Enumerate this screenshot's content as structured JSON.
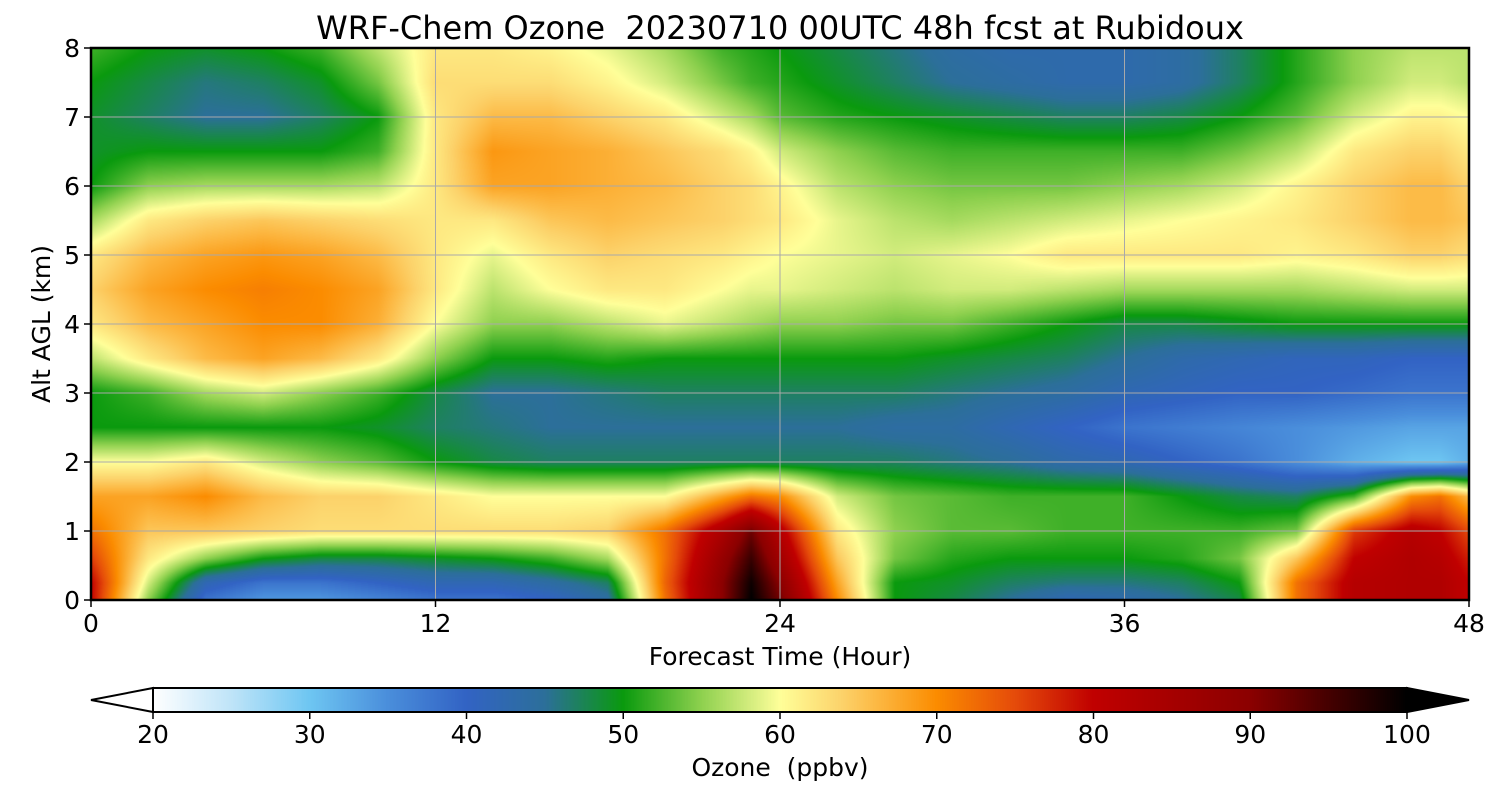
{
  "chart_data": {
    "type": "heatmap",
    "title": "WRF-Chem Ozone  20230710 00UTC 48h fcst at Rubidoux",
    "xlabel": "Forecast Time (Hour)",
    "ylabel": "Alt AGL (km)",
    "xlim": [
      0,
      48
    ],
    "ylim": [
      0,
      8
    ],
    "xticks": [
      0,
      12,
      24,
      36,
      48
    ],
    "yticks": [
      0,
      1,
      2,
      3,
      4,
      5,
      6,
      7,
      8
    ],
    "grid": true,
    "x_hours": [
      0,
      2,
      4,
      6,
      8,
      10,
      12,
      14,
      16,
      18,
      20,
      22,
      23,
      24,
      26,
      28,
      30,
      32,
      34,
      36,
      38,
      40,
      42,
      44,
      46,
      47,
      48
    ],
    "y_km": [
      0,
      0.25,
      0.6,
      1.0,
      1.5,
      2.0,
      2.5,
      3.0,
      3.5,
      4.0,
      4.5,
      5.0,
      5.5,
      6.0,
      6.5,
      7.0,
      7.5,
      8.0
    ],
    "values_ppbv": [
      [
        80,
        55,
        38,
        34,
        34,
        36,
        38,
        38,
        40,
        44,
        72,
        90,
        100,
        92,
        70,
        50,
        48,
        45,
        42,
        43,
        45,
        48,
        72,
        82,
        83,
        83,
        80
      ],
      [
        80,
        58,
        42,
        38,
        38,
        40,
        42,
        42,
        44,
        47,
        73,
        90,
        99,
        90,
        68,
        50,
        49,
        47,
        46,
        46,
        47,
        50,
        72,
        82,
        83,
        83,
        80
      ],
      [
        76,
        62,
        55,
        50,
        48,
        48,
        49,
        50,
        52,
        56,
        72,
        88,
        96,
        86,
        65,
        54,
        51,
        50,
        50,
        50,
        51,
        54,
        65,
        80,
        83,
        82,
        78
      ],
      [
        72,
        65,
        65,
        64,
        63,
        63,
        63,
        63,
        63,
        64,
        72,
        84,
        92,
        82,
        62,
        55,
        53,
        53,
        52,
        52,
        52,
        52,
        54,
        76,
        82,
        80,
        75
      ],
      [
        68,
        68,
        70,
        66,
        64,
        64,
        62,
        60,
        60,
        60,
        60,
        68,
        72,
        70,
        58,
        54,
        53,
        52,
        52,
        52,
        50,
        48,
        47,
        52,
        70,
        72,
        66
      ],
      [
        60,
        60,
        62,
        58,
        55,
        53,
        50,
        48,
        47,
        47,
        47,
        47,
        47,
        47,
        47,
        47,
        46,
        45,
        43,
        42,
        40,
        38,
        35,
        32,
        30,
        30,
        32
      ],
      [
        50,
        50,
        50,
        50,
        50,
        49,
        47,
        46,
        45,
        45,
        45,
        45,
        45,
        45,
        45,
        44,
        44,
        42,
        40,
        38,
        37,
        36,
        35,
        34,
        33,
        33,
        33
      ],
      [
        50,
        52,
        56,
        58,
        55,
        52,
        48,
        45,
        45,
        46,
        47,
        47,
        47,
        47,
        47,
        47,
        46,
        45,
        44,
        42,
        41,
        40,
        40,
        39,
        38,
        38,
        38
      ],
      [
        57,
        62,
        66,
        68,
        66,
        62,
        55,
        50,
        50,
        51,
        50,
        50,
        50,
        50,
        50,
        50,
        49,
        48,
        47,
        45,
        43,
        42,
        41,
        41,
        40,
        40,
        40
      ],
      [
        62,
        66,
        68,
        70,
        70,
        67,
        60,
        55,
        55,
        57,
        59,
        57,
        56,
        55,
        55,
        54,
        54,
        52,
        50,
        48,
        48,
        49,
        50,
        50,
        50,
        50,
        50
      ],
      [
        64,
        68,
        70,
        71,
        70,
        68,
        62,
        57,
        60,
        62,
        62,
        60,
        59,
        59,
        58,
        57,
        58,
        58,
        57,
        56,
        56,
        56,
        56,
        57,
        58,
        58,
        58
      ],
      [
        62,
        66,
        68,
        69,
        68,
        66,
        62,
        59,
        62,
        64,
        63,
        62,
        61,
        60,
        59,
        58,
        59,
        60,
        62,
        62,
        62,
        62,
        61,
        62,
        64,
        64,
        63
      ],
      [
        56,
        62,
        64,
        65,
        64,
        63,
        62,
        62,
        65,
        66,
        65,
        64,
        63,
        62,
        59,
        57,
        56,
        57,
        58,
        59,
        60,
        61,
        62,
        64,
        66,
        66,
        65
      ],
      [
        50,
        55,
        56,
        56,
        56,
        57,
        62,
        68,
        68,
        67,
        66,
        64,
        63,
        61,
        57,
        55,
        54,
        54,
        54,
        55,
        56,
        58,
        61,
        64,
        66,
        66,
        64
      ],
      [
        49,
        50,
        50,
        50,
        50,
        52,
        62,
        69,
        68,
        67,
        65,
        63,
        61,
        58,
        55,
        53,
        52,
        52,
        52,
        52,
        52,
        54,
        57,
        62,
        64,
        64,
        62
      ],
      [
        49,
        47,
        45,
        45,
        47,
        50,
        62,
        66,
        66,
        64,
        62,
        58,
        56,
        53,
        51,
        50,
        49,
        48,
        47,
        47,
        48,
        50,
        53,
        58,
        61,
        61,
        60
      ],
      [
        50,
        48,
        46,
        47,
        49,
        54,
        63,
        63,
        63,
        61,
        58,
        54,
        52,
        51,
        49,
        47,
        45,
        44,
        43,
        43,
        44,
        47,
        51,
        55,
        58,
        58,
        57
      ],
      [
        52,
        50,
        49,
        50,
        52,
        57,
        62,
        62,
        61,
        59,
        56,
        52,
        51,
        50,
        48,
        46,
        44,
        43,
        43,
        43,
        44,
        47,
        51,
        55,
        57,
        57,
        57
      ]
    ],
    "colorbar": {
      "label": "Ozone  (ppbv)",
      "min": 20,
      "max": 100,
      "ticks": [
        20,
        30,
        40,
        50,
        60,
        70,
        80,
        90,
        100
      ],
      "extend": "both",
      "stops": [
        [
          20,
          "#ffffff"
        ],
        [
          25,
          "#bfe4f8"
        ],
        [
          30,
          "#6ec6f2"
        ],
        [
          35,
          "#4a8edb"
        ],
        [
          40,
          "#3263c4"
        ],
        [
          45,
          "#2c6f9a"
        ],
        [
          50,
          "#0a9a0e"
        ],
        [
          55,
          "#8fd14f"
        ],
        [
          59,
          "#e8f58c"
        ],
        [
          60,
          "#ffff99"
        ],
        [
          64,
          "#fcd26a"
        ],
        [
          70,
          "#fb8c00"
        ],
        [
          75,
          "#e54b0a"
        ],
        [
          80,
          "#c00000"
        ],
        [
          90,
          "#8b0000"
        ],
        [
          100,
          "#000000"
        ]
      ]
    }
  }
}
